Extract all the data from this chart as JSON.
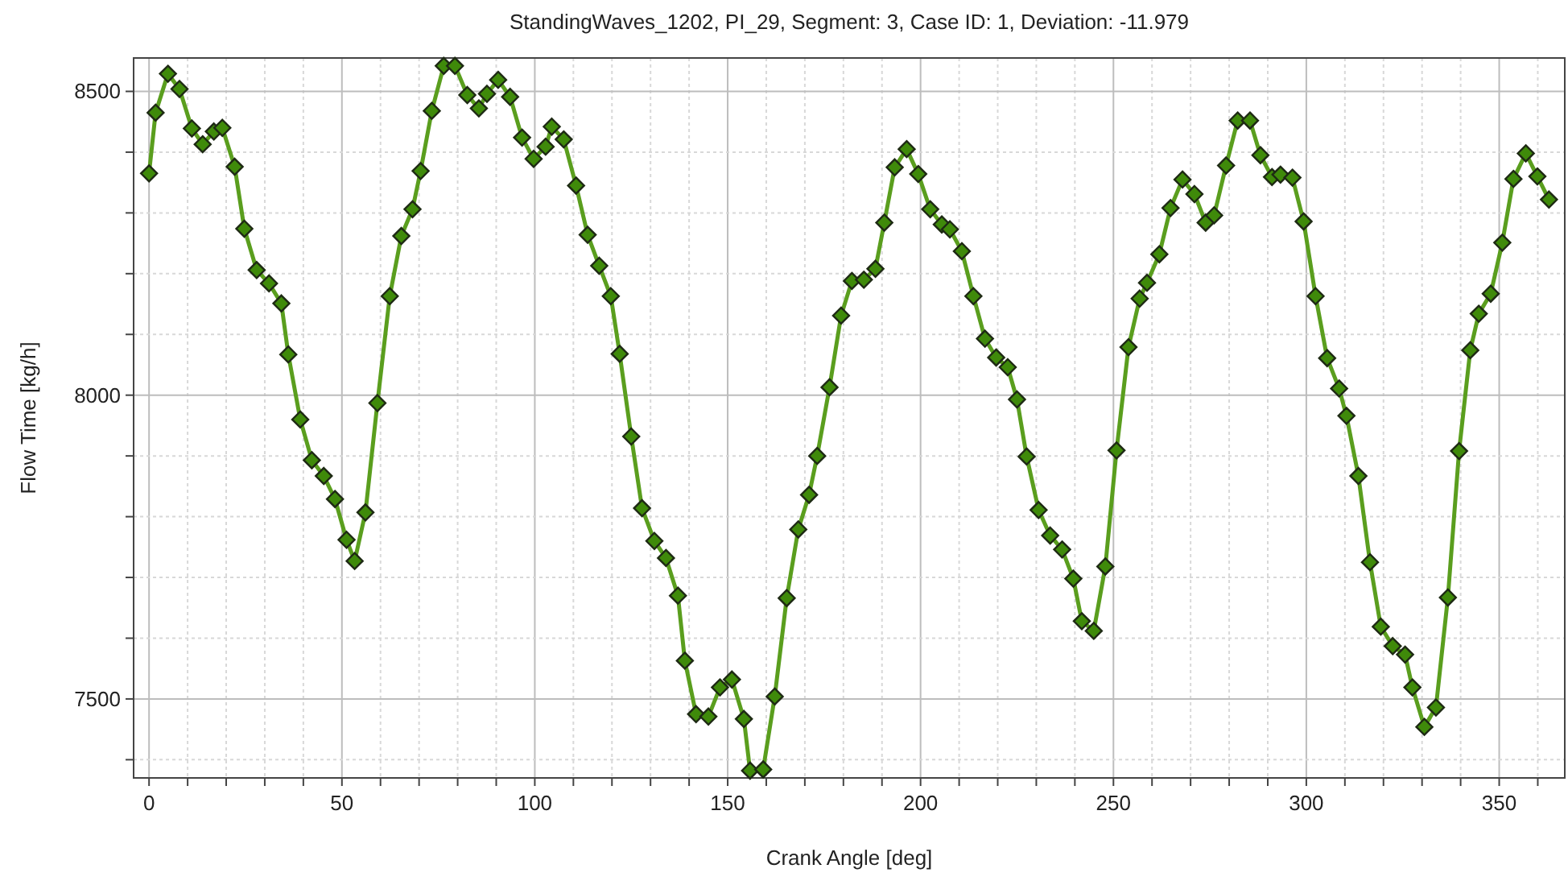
{
  "chart_data": {
    "type": "line",
    "title": "StandingWaves_1202, PI_29, Segment: 3, Case ID: 1, Deviation: -11.979",
    "xlabel": "Crank Angle [deg]",
    "ylabel": "Flow Time [kg/h]",
    "x": [
      0,
      1.7,
      4.9,
      7.9,
      11.1,
      13.9,
      16.8,
      19,
      22.2,
      24.7,
      27.9,
      31.1,
      34.3,
      36.1,
      39.2,
      42.2,
      45.3,
      48.2,
      51.2,
      53.3,
      56.1,
      59.2,
      62.4,
      65.4,
      68.3,
      70.4,
      73.3,
      76.4,
      79.3,
      82.5,
      85.5,
      87.6,
      90.5,
      93.6,
      96.7,
      99.7,
      102.8,
      104.4,
      107.5,
      110.7,
      113.7,
      116.7,
      119.7,
      122,
      125,
      127.8,
      131,
      134,
      137.1,
      138.9,
      141.8,
      145,
      148,
      151.1,
      154.2,
      155.8,
      159.2,
      162.2,
      165.3,
      168.3,
      171.1,
      173.2,
      176.4,
      179.4,
      182.2,
      185.3,
      188.3,
      190.6,
      193.3,
      196.4,
      199.4,
      202.5,
      205.5,
      207.6,
      210.7,
      213.7,
      216.7,
      219.6,
      222.6,
      225,
      227.5,
      230.6,
      233.6,
      236.7,
      239.6,
      241.8,
      244.9,
      247.9,
      250.8,
      253.9,
      256.8,
      258.7,
      261.9,
      264.8,
      267.9,
      271,
      273.9,
      276.1,
      279.2,
      282.2,
      285.4,
      288.1,
      291.1,
      293.3,
      296.4,
      299.3,
      302.4,
      305.4,
      308.5,
      310.4,
      313.5,
      316.5,
      319.3,
      322.4,
      325.6,
      327.5,
      330.6,
      333.6,
      336.7,
      339.6,
      342.5,
      344.7,
      347.8,
      350.8,
      353.7,
      356.9,
      359.9,
      362.9
    ],
    "series": [
      {
        "color": "#5a9e1e",
        "values": [
          8365,
          8465,
          8529,
          8504,
          8439,
          8413,
          8434,
          8440,
          8376,
          8274,
          8206,
          8184,
          8151,
          8067,
          7960,
          7893,
          7867,
          7829,
          7762,
          7727,
          7807,
          7987,
          8163,
          8262,
          8306,
          8369,
          8468,
          8542,
          8542,
          8494,
          8472,
          8496,
          8519,
          8491,
          8424,
          8389,
          8409,
          8442,
          8421,
          8345,
          8264,
          8213,
          8163,
          8068,
          7932,
          7814,
          7760,
          7732,
          7670,
          7563,
          7475,
          7471,
          7519,
          7532,
          7467,
          7382,
          7384,
          7504,
          7666,
          7779,
          7836,
          7900,
          8013,
          8131,
          8188,
          8190,
          8208,
          8284,
          8375,
          8405,
          8364,
          8306,
          8281,
          8273,
          8237,
          8163,
          8093,
          8062,
          8046,
          7993,
          7899,
          7811,
          7769,
          7746,
          7698,
          7628,
          7612,
          7718,
          7909,
          8079,
          8159,
          8185,
          8232,
          8308,
          8355,
          8331,
          8284,
          8296,
          8378,
          8452,
          8452,
          8395,
          8359,
          8363,
          8358,
          8286,
          8163,
          8061,
          8011,
          7966,
          7867,
          7725,
          7619,
          7587,
          7573,
          7519,
          7454,
          7486,
          7667,
          7908,
          8074,
          8134,
          8167,
          8251,
          8356,
          8398,
          8360,
          8322
        ]
      }
    ],
    "marker": "diamond",
    "line_style": "solid",
    "grid": true,
    "xlim": [
      -4,
      367
    ],
    "ylim": [
      7370,
      8555
    ],
    "xticks": [
      0,
      {
        "value": 10,
        "label": null
      },
      {
        "value": 20,
        "label": null
      },
      {
        "value": 30,
        "label": null
      },
      {
        "value": 40,
        "label": null
      },
      50,
      {
        "value": 60,
        "label": null
      },
      {
        "value": 70,
        "label": null
      },
      {
        "value": 80,
        "label": null
      },
      {
        "value": 90,
        "label": null
      },
      100,
      {
        "value": 110,
        "label": null
      },
      {
        "value": 120,
        "label": null
      },
      {
        "value": 130,
        "label": null
      },
      {
        "value": 140,
        "label": null
      },
      150,
      {
        "value": 160,
        "label": null
      },
      {
        "value": 170,
        "label": null
      },
      {
        "value": 180,
        "label": null
      },
      {
        "value": 190,
        "label": null
      },
      200,
      {
        "value": 210,
        "label": null
      },
      {
        "value": 220,
        "label": null
      },
      {
        "value": 230,
        "label": null
      },
      {
        "value": 240,
        "label": null
      },
      250,
      {
        "value": 260,
        "label": null
      },
      {
        "value": 270,
        "label": null
      },
      {
        "value": 280,
        "label": null
      },
      {
        "value": 290,
        "label": null
      },
      300,
      {
        "value": 310,
        "label": null
      },
      {
        "value": 320,
        "label": null
      },
      {
        "value": 330,
        "label": null
      },
      {
        "value": 340,
        "label": null
      },
      350,
      {
        "value": 360,
        "label": null
      }
    ],
    "yticks": [
      {
        "value": 7400,
        "label": null
      },
      7500,
      {
        "value": 7600,
        "label": null
      },
      {
        "value": 7700,
        "label": null
      },
      {
        "value": 7800,
        "label": null
      },
      {
        "value": 7900,
        "label": null
      },
      8000,
      {
        "value": 8100,
        "label": null
      },
      {
        "value": 8200,
        "label": null
      },
      {
        "value": 8300,
        "label": null
      },
      {
        "value": 8400,
        "label": null
      },
      8500
    ]
  }
}
